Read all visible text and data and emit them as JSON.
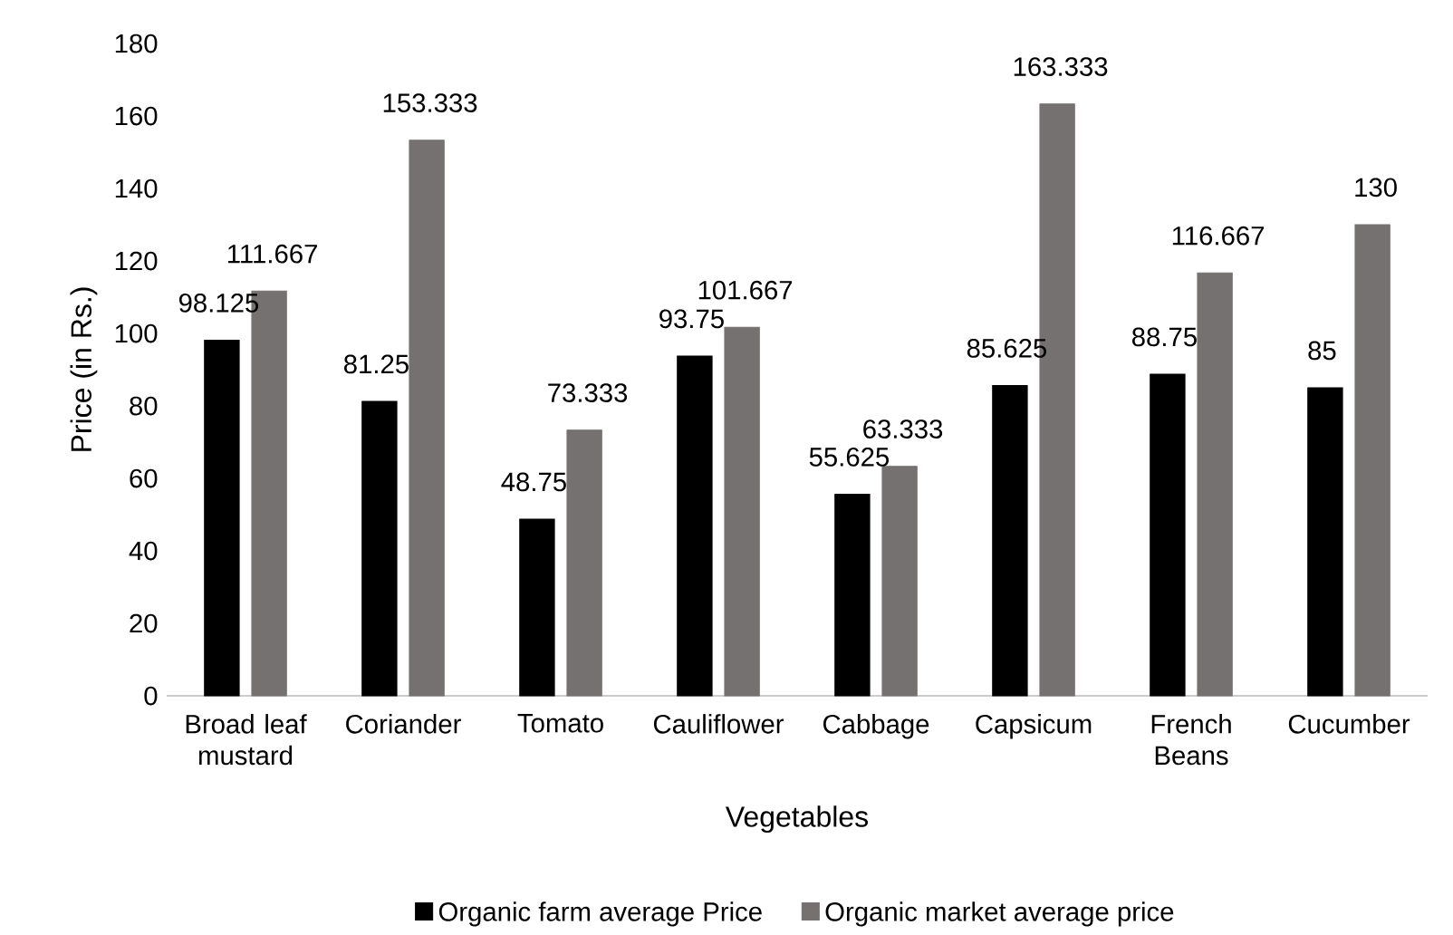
{
  "chart_data": {
    "type": "bar",
    "xlabel": "Vegetables",
    "ylabel": "Price (in Rs.)",
    "categories": [
      "Broad leaf mustard",
      "Coriander",
      "Tomato",
      "Cauliflower",
      "Cabbage",
      "Capsicum",
      "French Beans",
      "Cucumber"
    ],
    "series": [
      {
        "name": "Organic farm average Price",
        "color": "#000000",
        "values": [
          98.125,
          81.25,
          48.75,
          93.75,
          55.625,
          85.625,
          88.75,
          85
        ]
      },
      {
        "name": "Organic market average price",
        "color": "#767171",
        "values": [
          111.667,
          153.333,
          73.333,
          101.667,
          63.333,
          163.333,
          116.667,
          130
        ]
      }
    ],
    "ylim": [
      0,
      180
    ],
    "yticks": [
      0,
      20,
      40,
      60,
      80,
      100,
      120,
      140,
      160,
      180
    ],
    "grid": false,
    "legend": "bottom",
    "data_labels": true
  }
}
